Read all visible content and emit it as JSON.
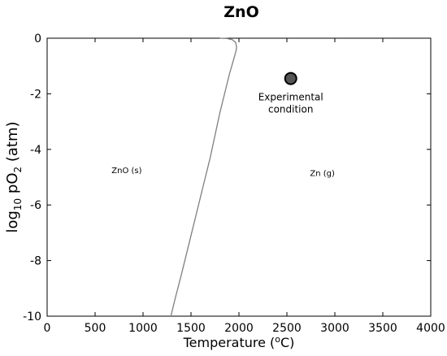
{
  "chart_data": {
    "type": "line",
    "title": "ZnO",
    "xlabel": {
      "prefix": "Temperature (",
      "sup": "o",
      "suffix": "C)"
    },
    "ylabel": {
      "prefix": "log",
      "sub1": "10",
      "middle": " pO",
      "sub2": "2",
      "suffix": " (atm)"
    },
    "xlim": [
      0,
      4000
    ],
    "ylim": [
      -10,
      0
    ],
    "x_ticks": [
      0,
      500,
      1000,
      1500,
      2000,
      2500,
      3000,
      3500,
      4000
    ],
    "x_tick_labels": [
      "0",
      "500",
      "1000",
      "1500",
      "2000",
      "2500",
      "3000",
      "3500",
      "4000"
    ],
    "y_ticks": [
      0,
      -2,
      -4,
      -6,
      -8,
      -10
    ],
    "y_tick_labels": [
      "0",
      "-2",
      "-4",
      "-6",
      "-8",
      "-10"
    ],
    "grid": false,
    "series": [
      {
        "color": "#7f7f7f",
        "points": [
          [
            1290,
            -10.0
          ],
          [
            1340,
            -9.3
          ],
          [
            1400,
            -8.5
          ],
          [
            1450,
            -7.8
          ],
          [
            1500,
            -7.1
          ],
          [
            1550,
            -6.4
          ],
          [
            1600,
            -5.7
          ],
          [
            1650,
            -5.0
          ],
          [
            1700,
            -4.3
          ],
          [
            1750,
            -3.5
          ],
          [
            1800,
            -2.7
          ],
          [
            1850,
            -2.0
          ],
          [
            1900,
            -1.3
          ],
          [
            1950,
            -0.7
          ],
          [
            1970,
            -0.45
          ],
          [
            1975,
            -0.3
          ],
          [
            1965,
            -0.15
          ],
          [
            1930,
            -0.05
          ],
          [
            1870,
            -0.01
          ],
          [
            1800,
            0.0
          ]
        ]
      }
    ],
    "regions": [
      {
        "label": "ZnO (s)",
        "x": 830,
        "y": -4.85
      },
      {
        "label": "Zn (g)",
        "x": 2870,
        "y": -4.95
      }
    ],
    "experimental_point": {
      "x": 2540,
      "y": -1.45,
      "label_lines": [
        "Experimental",
        "condition"
      ],
      "color": "#555555"
    }
  }
}
